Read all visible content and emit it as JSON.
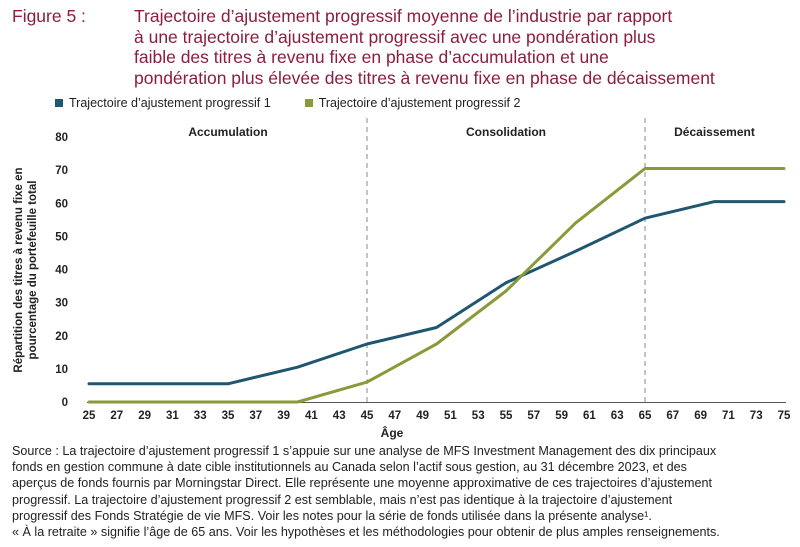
{
  "figure": {
    "label": "Figure 5 :",
    "title_lines": [
      "Trajectoire d’ajustement progressif moyenne de l’industrie par rapport",
      "à une trajectoire d’ajustement progressif avec une pondération plus",
      "faible des titres à revenu fixe en phase d’accumulation et une",
      "pondération plus élevée des titres à revenu fixe en phase de décaissement"
    ]
  },
  "colors": {
    "series1": "#1f5670",
    "series2": "#8a9a3a",
    "title": "#8c1d40"
  },
  "chart_data": {
    "type": "line",
    "title": "",
    "xlabel": "Âge",
    "ylabel_lines": [
      "Répartition des titres à revenu fixe en",
      "pourcentage du portefeuille total"
    ],
    "x_ticks": [
      25,
      27,
      29,
      31,
      33,
      35,
      37,
      39,
      41,
      43,
      45,
      47,
      49,
      51,
      53,
      55,
      57,
      59,
      61,
      63,
      65,
      67,
      69,
      71,
      73,
      75
    ],
    "xlim": [
      25,
      75
    ],
    "y_ticks": [
      0,
      10,
      20,
      30,
      40,
      50,
      60,
      70,
      80
    ],
    "ylim": [
      0,
      80
    ],
    "grid": false,
    "legend_position": "top-left",
    "phases": [
      {
        "label": "Accumulation",
        "center_age": 35
      },
      {
        "label": "Consolidation",
        "center_age": 55
      },
      {
        "label": "Décaissement",
        "center_age": 70
      }
    ],
    "phase_dividers": [
      45,
      65
    ],
    "series": [
      {
        "name": "Trajectoire d’ajustement progressif 1",
        "color": "#1f5670",
        "x": [
          25,
          35,
          40,
          45,
          50,
          55,
          60,
          65,
          70,
          75
        ],
        "y": [
          5.5,
          5.5,
          10.5,
          17.5,
          22.5,
          36,
          45.5,
          55.5,
          60.5,
          60.5
        ]
      },
      {
        "name": "Trajectoire d’ajustement progressif 2",
        "color": "#8a9a3a",
        "x": [
          25,
          35,
          40,
          45,
          50,
          55,
          60,
          65,
          70,
          75
        ],
        "y": [
          0,
          0,
          0,
          6,
          17.5,
          33.5,
          54,
          70.5,
          70.5,
          70.5
        ]
      }
    ]
  },
  "source_lines": [
    "Source : La trajectoire d’ajustement progressif 1 s’appuie sur une analyse de MFS Investment Management des dix principaux",
    "fonds en gestion commune à date cible institutionnels au Canada selon l’actif sous gestion, au 31 décembre 2023, et des",
    "aperçus de fonds fournis par Morningstar Direct. Elle représente une moyenne approximative de ces trajectoires d’ajustement",
    "progressif. La trajectoire d’ajustement progressif 2 est semblable, mais n’est pas identique à la trajectoire d’ajustement",
    "progressif des Fonds Stratégie de vie MFS.  Voir les notes pour la série de fonds utilisée dans la présente analyse¹.",
    "« À la retraite » signifie l’âge de 65 ans. Voir les hypothèses et les méthodologies pour obtenir de plus amples renseignements."
  ]
}
